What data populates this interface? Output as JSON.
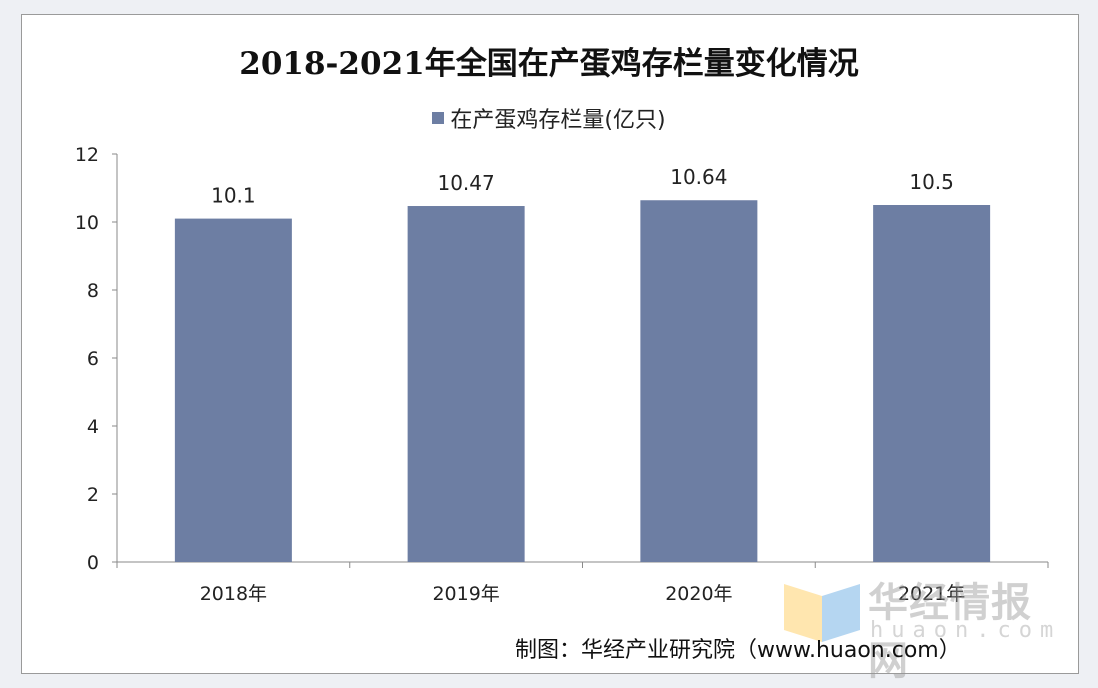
{
  "chart_data": {
    "type": "bar",
    "title": "2018-2021年全国在产蛋鸡存栏量变化情况",
    "categories": [
      "2018年",
      "2019年",
      "2020年",
      "2021年"
    ],
    "series": [
      {
        "name": "在产蛋鸡存栏量(亿只)",
        "values": [
          10.1,
          10.47,
          10.64,
          10.5
        ],
        "labels": [
          "10.1",
          "10.47",
          "10.64",
          "10.5"
        ]
      }
    ],
    "ylim": [
      0,
      12
    ],
    "yticks": [
      "0",
      "2",
      "4",
      "6",
      "8",
      "10",
      "12"
    ],
    "grid": false,
    "legend_position": "top",
    "bar_color": "#6d7ea3"
  },
  "watermark": {
    "brand": "华经情报网",
    "url": "huaon.com"
  },
  "source": "制图：华经产业研究院（www.huaon.com）"
}
